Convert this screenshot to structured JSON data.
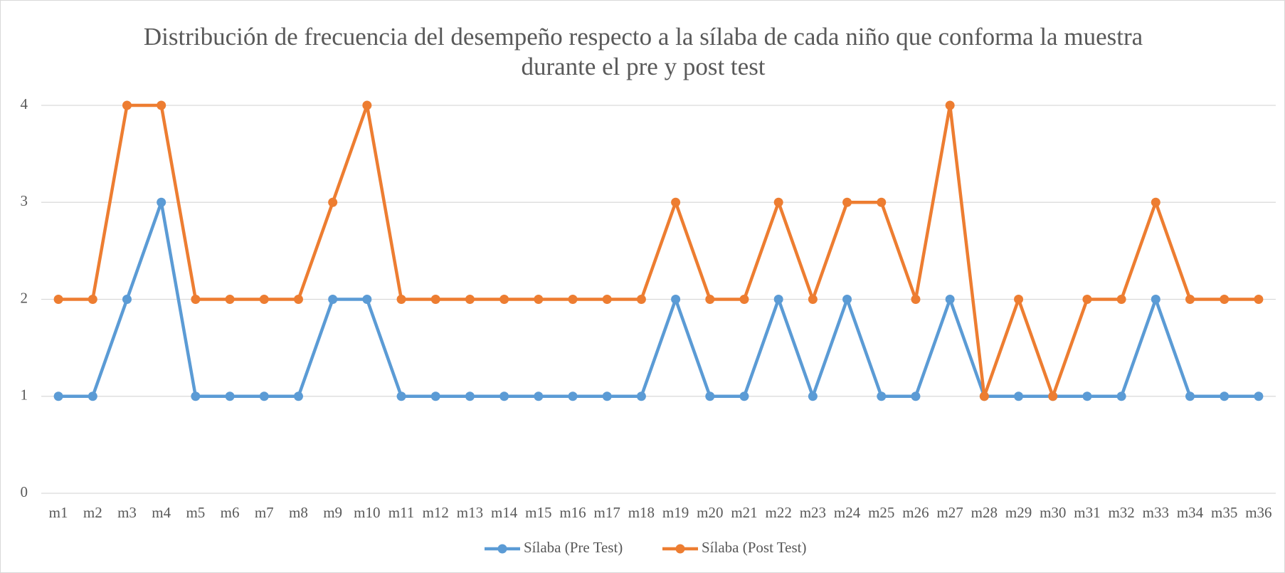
{
  "chart_data": {
    "type": "line",
    "title": "Distribución de frecuencia del desempeño respecto a la sílaba de cada niño que conforma la muestra durante el pre y post test",
    "categories": [
      "m1",
      "m2",
      "m3",
      "m4",
      "m5",
      "m6",
      "m7",
      "m8",
      "m9",
      "m10",
      "m11",
      "m12",
      "m13",
      "m14",
      "m15",
      "m16",
      "m17",
      "m18",
      "m19",
      "m20",
      "m21",
      "m22",
      "m23",
      "m24",
      "m25",
      "m26",
      "m27",
      "m28",
      "m29",
      "m30",
      "m31",
      "m32",
      "m33",
      "m34",
      "m35",
      "m36"
    ],
    "series": [
      {
        "name": "Sílaba (Pre Test)",
        "color": "#5b9bd5",
        "values": [
          1,
          1,
          2,
          3,
          1,
          1,
          1,
          1,
          2,
          2,
          1,
          1,
          1,
          1,
          1,
          1,
          1,
          1,
          2,
          1,
          1,
          2,
          1,
          2,
          1,
          1,
          2,
          1,
          1,
          1,
          1,
          1,
          2,
          1,
          1,
          1
        ]
      },
      {
        "name": "Sílaba (Post Test)",
        "color": "#ed7d31",
        "values": [
          2,
          2,
          4,
          4,
          2,
          2,
          2,
          2,
          3,
          4,
          2,
          2,
          2,
          2,
          2,
          2,
          2,
          2,
          3,
          2,
          2,
          3,
          2,
          3,
          3,
          2,
          4,
          1,
          2,
          1,
          2,
          2,
          3,
          2,
          2,
          2
        ]
      }
    ],
    "ylim": [
      0,
      4
    ],
    "yticks": [
      0,
      1,
      2,
      3,
      4
    ],
    "grid": true,
    "legend": "bottom"
  }
}
